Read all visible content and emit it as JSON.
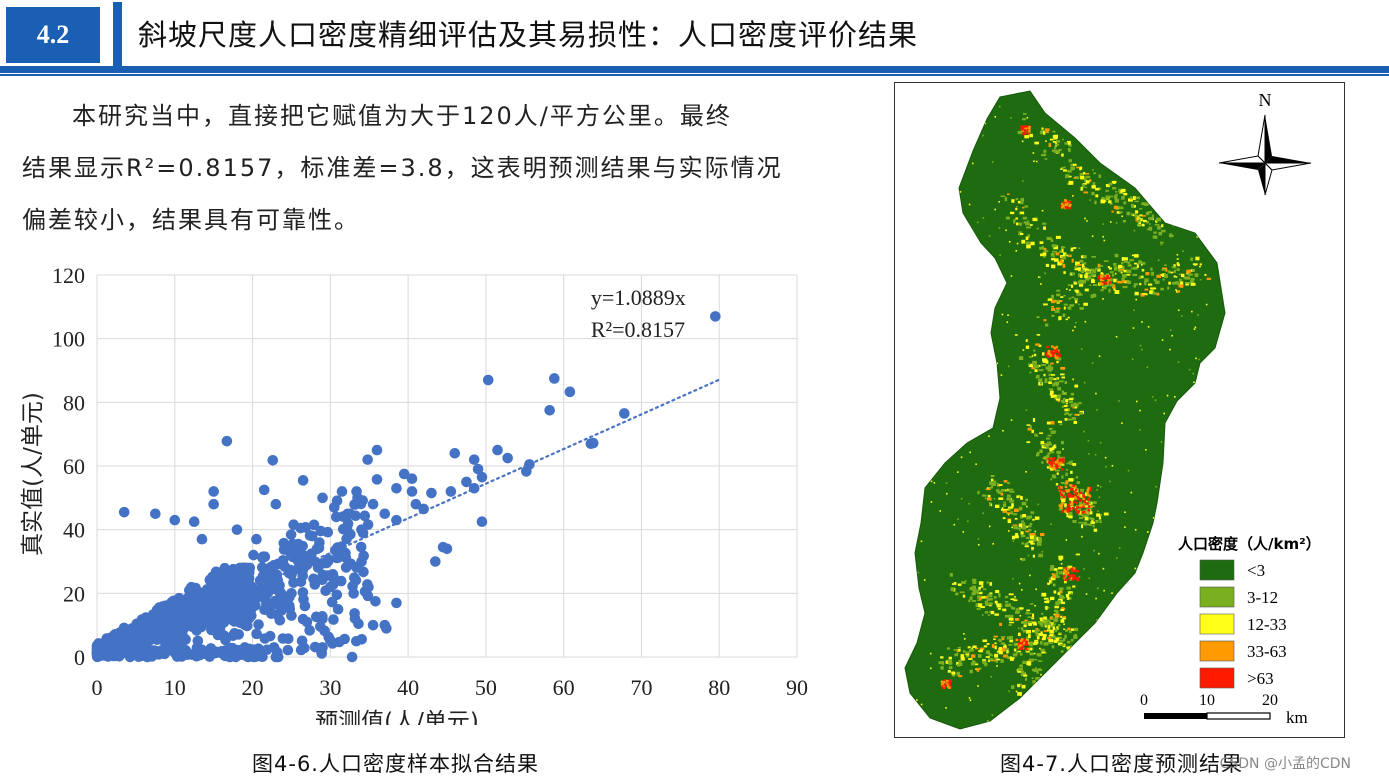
{
  "header": {
    "section_number": "4.2",
    "title": "斜坡尺度人口密度精细评估及其易损性：人口密度评价结果",
    "accent_color": "#1a5fb4"
  },
  "paragraph": {
    "lines": [
      "本研究当中，直接把它赋值为大于120人/平方公里。最终",
      "结果显示R²=0.8157，标准差=3.8，这表明预测结果与实际情况",
      "偏差较小，结果具有可靠性。"
    ]
  },
  "figure_left": {
    "caption": "图4-6.人口密度样本拟合结果"
  },
  "figure_right": {
    "caption": "图4-7.人口密度预测结果",
    "north_label": "N",
    "legend_title": "人口密度（人/km²）",
    "legend": [
      {
        "label": "<3",
        "color": "#1e6b10"
      },
      {
        "label": "3-12",
        "color": "#7ab020"
      },
      {
        "label": "12-33",
        "color": "#ffff1a"
      },
      {
        "label": "33-63",
        "color": "#ff9a00"
      },
      {
        "label": ">63",
        "color": "#ff1a00"
      }
    ],
    "scale_ticks": [
      "0",
      "10",
      "20"
    ],
    "scale_unit": "km"
  },
  "watermark": "CSDN @小孟的CDN",
  "chart_data": {
    "type": "scatter",
    "xlabel": "预测值(人/单元)",
    "ylabel": "真实值(人/单元)",
    "xlim": [
      0,
      90
    ],
    "ylim": [
      0,
      120
    ],
    "xticks": [
      0,
      10,
      20,
      30,
      40,
      50,
      60,
      70,
      80,
      90
    ],
    "yticks": [
      0,
      20,
      40,
      60,
      80,
      100,
      120
    ],
    "grid": true,
    "point_color": "#4472c4",
    "trendline": {
      "slope": 1.0889,
      "equation": "y=1.0889x",
      "r2": "R²=0.8157",
      "x_range": [
        0,
        80
      ]
    },
    "notable_points": [
      [
        79.5,
        107
      ],
      [
        50.3,
        87
      ],
      [
        58.8,
        87.5
      ],
      [
        60.8,
        83.3
      ],
      [
        58.2,
        77.5
      ],
      [
        67.8,
        76.5
      ],
      [
        63.5,
        67
      ],
      [
        63.8,
        67.2
      ],
      [
        55.6,
        60.5
      ],
      [
        55.2,
        58.3
      ],
      [
        52.8,
        62.5
      ],
      [
        51.5,
        65
      ],
      [
        48.5,
        62
      ],
      [
        46,
        64
      ],
      [
        49,
        59
      ],
      [
        49.5,
        56.5
      ],
      [
        47.5,
        55
      ],
      [
        48.5,
        53
      ],
      [
        45.5,
        52
      ],
      [
        43,
        51.5
      ],
      [
        40.5,
        52
      ],
      [
        39.5,
        57.5
      ],
      [
        40.5,
        56
      ],
      [
        36,
        65
      ],
      [
        34.8,
        62
      ],
      [
        16.7,
        67.8
      ],
      [
        22.6,
        61.8
      ],
      [
        49.5,
        42.5
      ],
      [
        45,
        34
      ],
      [
        44.5,
        34.5
      ],
      [
        43.5,
        30
      ],
      [
        38.5,
        17
      ],
      [
        35.8,
        17.5
      ],
      [
        37,
        10
      ],
      [
        37.2,
        9
      ],
      [
        35.5,
        10
      ],
      [
        32.8,
        0
      ],
      [
        29,
        3
      ],
      [
        23.3,
        0
      ],
      [
        20.2,
        0
      ],
      [
        23,
        0
      ],
      [
        19,
        3
      ],
      [
        18,
        14
      ],
      [
        16.5,
        17
      ],
      [
        25,
        13
      ],
      [
        27,
        11
      ],
      [
        3.5,
        45.5
      ],
      [
        7.5,
        45
      ],
      [
        12.5,
        42.5
      ],
      [
        13.5,
        37
      ],
      [
        15,
        48
      ],
      [
        10,
        43
      ],
      [
        18,
        40
      ],
      [
        20.5,
        37
      ],
      [
        23,
        48
      ],
      [
        21.5,
        52.5
      ],
      [
        29,
        50
      ],
      [
        31.5,
        52
      ],
      [
        33.5,
        50
      ],
      [
        30.5,
        47
      ],
      [
        26.5,
        55.5
      ],
      [
        32.5,
        45
      ],
      [
        35.5,
        48
      ],
      [
        34,
        40
      ],
      [
        37,
        45
      ],
      [
        38.5,
        43
      ],
      [
        36,
        55.8
      ],
      [
        38.5,
        53
      ],
      [
        41,
        48
      ],
      [
        42,
        46.5
      ],
      [
        28,
        30
      ],
      [
        30,
        22
      ],
      [
        33,
        20
      ],
      [
        25,
        20
      ],
      [
        31,
        15
      ],
      [
        15,
        52
      ]
    ]
  }
}
